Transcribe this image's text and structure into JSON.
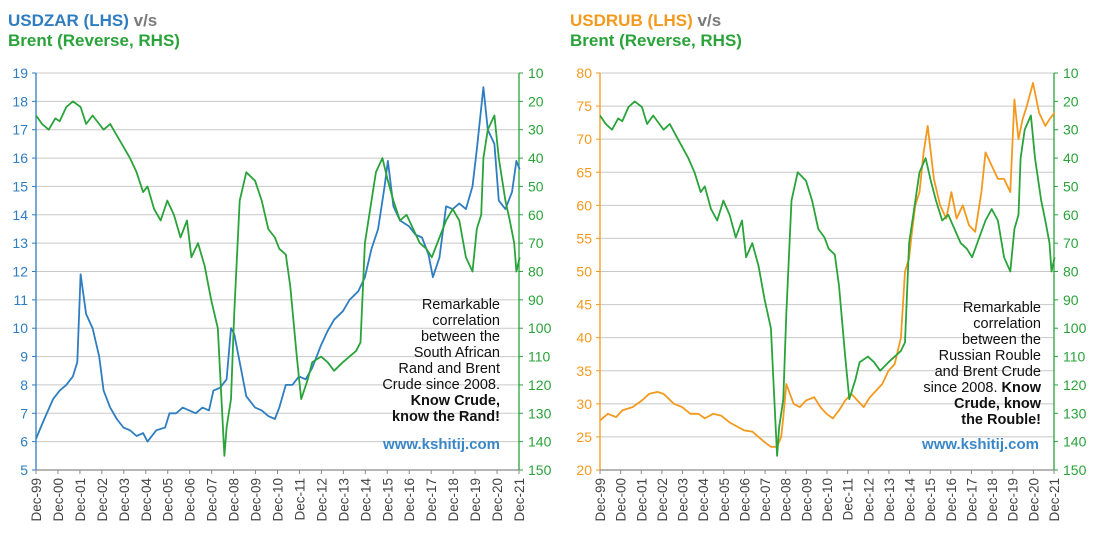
{
  "colors": {
    "zar": "#2f7dc1",
    "rub": "#f39a1e",
    "brent": "#2aa33a",
    "grid": "#c8c8c8",
    "site": "#3a87c7"
  },
  "charts": [
    {
      "id": "left",
      "title_main": "USDZAR (LHS)",
      "title_vs": "v/s",
      "subtitle": "Brent (Reverse, RHS)",
      "annotation_lines": [
        "Remarkable",
        "correlation",
        "between the",
        "South African",
        "Rand and Brent",
        "Crude since 2008."
      ],
      "annotation_bold_lines": [
        "Know Crude,",
        "know the Rand!"
      ],
      "website": "www.kshitij.com"
    },
    {
      "id": "right",
      "title_main": "USDRUB (LHS)",
      "title_vs": "v/s",
      "subtitle": "Brent (Reverse, RHS)",
      "annotation_lines": [
        "Remarkable",
        "correlation",
        "between the",
        "Russian Rouble",
        "and Brent Crude",
        "since 2008."
      ],
      "annotation_bold_lines": [
        "Know",
        "Crude, know",
        "the Rouble!"
      ],
      "website": "www.kshitij.com"
    }
  ],
  "chart_data": [
    {
      "type": "line",
      "x_ticks": [
        "Dec-99",
        "Dec-00",
        "Dec-01",
        "Dec-02",
        "Dec-03",
        "Dec-04",
        "Dec-05",
        "Dec-06",
        "Dec-07",
        "Dec-08",
        "Dec-09",
        "Dec-10",
        "Dec-11",
        "Dec-12",
        "Dec-13",
        "Dec-14",
        "Dec-15",
        "Dec-16",
        "Dec-17",
        "Dec-18",
        "Dec-19",
        "Dec-20",
        "Dec-21"
      ],
      "y_left_ticks": [
        "5",
        "6",
        "7",
        "8",
        "9",
        "10",
        "11",
        "12",
        "13",
        "14",
        "15",
        "16",
        "17",
        "18",
        "19"
      ],
      "y_right_ticks": [
        "10",
        "20",
        "30",
        "40",
        "50",
        "60",
        "70",
        "80",
        "90",
        "100",
        "110",
        "120",
        "130",
        "140",
        "150"
      ],
      "ylim_left": [
        5,
        19
      ],
      "ylim_right": [
        150,
        10
      ],
      "right_axis_reversed": true,
      "grid": true,
      "series": [
        {
          "name": "USDZAR",
          "axis": "left",
          "color": "#2f7dc1",
          "x": [
            1999.92,
            2000.3,
            2000.7,
            2001.0,
            2001.3,
            2001.6,
            2001.8,
            2001.95,
            2002.2,
            2002.5,
            2002.8,
            2003.0,
            2003.3,
            2003.6,
            2003.9,
            2004.2,
            2004.5,
            2004.8,
            2005.0,
            2005.4,
            2005.8,
            2006.0,
            2006.3,
            2006.6,
            2006.9,
            2007.2,
            2007.5,
            2007.8,
            2008.0,
            2008.3,
            2008.6,
            2008.8,
            2008.95,
            2009.2,
            2009.5,
            2009.9,
            2010.2,
            2010.5,
            2010.8,
            2011.0,
            2011.3,
            2011.6,
            2011.9,
            2012.2,
            2012.5,
            2012.9,
            2013.2,
            2013.5,
            2013.9,
            2014.2,
            2014.6,
            2014.9,
            2015.2,
            2015.5,
            2015.8,
            2015.95,
            2016.2,
            2016.5,
            2016.9,
            2017.2,
            2017.5,
            2017.8,
            2018.0,
            2018.3,
            2018.6,
            2018.9,
            2019.2,
            2019.5,
            2019.8,
            2020.0,
            2020.3,
            2020.5,
            2020.8,
            2021.0,
            2021.3,
            2021.6,
            2021.8,
            2021.95
          ],
          "y": [
            6.1,
            6.8,
            7.5,
            7.8,
            8.0,
            8.3,
            8.8,
            11.9,
            10.5,
            10.0,
            9.0,
            7.8,
            7.2,
            6.8,
            6.5,
            6.4,
            6.2,
            6.3,
            6.0,
            6.4,
            6.5,
            7.0,
            7.0,
            7.2,
            7.1,
            7.0,
            7.2,
            7.1,
            7.8,
            7.9,
            8.2,
            10.0,
            9.8,
            8.8,
            7.6,
            7.2,
            7.1,
            6.9,
            6.8,
            7.2,
            8.0,
            8.0,
            8.3,
            8.2,
            8.6,
            9.4,
            9.9,
            10.3,
            10.6,
            11.0,
            11.3,
            11.8,
            12.8,
            13.5,
            15.0,
            15.9,
            14.3,
            13.8,
            13.6,
            13.3,
            13.2,
            12.6,
            11.8,
            12.5,
            14.3,
            14.2,
            14.4,
            14.2,
            15.0,
            16.3,
            18.5,
            17.0,
            16.5,
            14.5,
            14.2,
            14.8,
            15.9,
            15.6
          ]
        },
        {
          "name": "Brent (Reverse)",
          "axis": "right",
          "color": "#2aa33a",
          "x": [
            1999.92,
            2000.2,
            2000.5,
            2000.8,
            2001.0,
            2001.3,
            2001.6,
            2001.95,
            2002.2,
            2002.5,
            2002.8,
            2003.0,
            2003.3,
            2003.6,
            2003.9,
            2004.2,
            2004.5,
            2004.8,
            2005.0,
            2005.3,
            2005.6,
            2005.9,
            2006.2,
            2006.5,
            2006.8,
            2007.0,
            2007.3,
            2007.6,
            2007.9,
            2008.2,
            2008.4,
            2008.5,
            2008.6,
            2008.8,
            2008.95,
            2009.2,
            2009.5,
            2009.9,
            2010.2,
            2010.5,
            2010.8,
            2011.0,
            2011.3,
            2011.5,
            2011.8,
            2012.0,
            2012.3,
            2012.5,
            2012.9,
            2013.2,
            2013.5,
            2013.9,
            2014.2,
            2014.5,
            2014.7,
            2014.9,
            2015.1,
            2015.4,
            2015.7,
            2015.95,
            2016.2,
            2016.5,
            2016.8,
            2017.1,
            2017.4,
            2017.7,
            2017.95,
            2018.3,
            2018.6,
            2018.9,
            2019.2,
            2019.5,
            2019.8,
            2020.0,
            2020.2,
            2020.3,
            2020.5,
            2020.8,
            2021.0,
            2021.3,
            2021.5,
            2021.7,
            2021.8,
            2021.95
          ],
          "y": [
            25,
            28,
            30,
            26,
            27,
            22,
            20,
            22,
            28,
            25,
            28,
            30,
            28,
            32,
            36,
            40,
            45,
            52,
            50,
            58,
            62,
            55,
            60,
            68,
            62,
            75,
            70,
            78,
            90,
            100,
            130,
            145,
            135,
            125,
            95,
            55,
            45,
            48,
            55,
            65,
            68,
            72,
            74,
            85,
            110,
            125,
            118,
            112,
            110,
            112,
            115,
            112,
            110,
            108,
            105,
            70,
            60,
            45,
            40,
            48,
            55,
            62,
            60,
            65,
            70,
            72,
            75,
            68,
            62,
            58,
            62,
            75,
            80,
            65,
            60,
            40,
            30,
            25,
            40,
            55,
            62,
            70,
            80,
            75
          ]
        }
      ]
    },
    {
      "type": "line",
      "x_ticks": [
        "Dec-99",
        "Dec-00",
        "Dec-01",
        "Dec-02",
        "Dec-03",
        "Dec-04",
        "Dec-05",
        "Dec-06",
        "Dec-07",
        "Dec-08",
        "Dec-09",
        "Dec-10",
        "Dec-11",
        "Dec-12",
        "Dec-13",
        "Dec-14",
        "Dec-15",
        "Dec-16",
        "Dec-17",
        "Dec-18",
        "Dec-19",
        "Dec-20",
        "Dec-21"
      ],
      "y_left_ticks": [
        "20",
        "25",
        "30",
        "35",
        "40",
        "45",
        "50",
        "55",
        "60",
        "65",
        "70",
        "75",
        "80"
      ],
      "y_right_ticks": [
        "10",
        "20",
        "30",
        "40",
        "50",
        "60",
        "70",
        "80",
        "90",
        "100",
        "110",
        "120",
        "130",
        "140",
        "150"
      ],
      "ylim_left": [
        20,
        80
      ],
      "ylim_right": [
        150,
        10
      ],
      "right_axis_reversed": true,
      "grid": true,
      "series": [
        {
          "name": "USDRUB",
          "axis": "left",
          "color": "#f39a1e",
          "x": [
            1999.92,
            2000.3,
            2000.7,
            2001.0,
            2001.5,
            2001.95,
            2002.3,
            2002.7,
            2003.0,
            2003.5,
            2003.9,
            2004.3,
            2004.7,
            2005.0,
            2005.4,
            2005.8,
            2006.2,
            2006.6,
            2006.9,
            2007.3,
            2007.6,
            2007.9,
            2008.2,
            2008.5,
            2008.7,
            2008.8,
            2008.95,
            2009.3,
            2009.6,
            2009.9,
            2010.3,
            2010.6,
            2010.9,
            2011.2,
            2011.5,
            2011.8,
            2012.1,
            2012.4,
            2012.7,
            2013.0,
            2013.3,
            2013.6,
            2013.9,
            2014.2,
            2014.5,
            2014.7,
            2014.9,
            2015.0,
            2015.2,
            2015.4,
            2015.6,
            2015.8,
            2015.95,
            2016.1,
            2016.4,
            2016.7,
            2016.95,
            2017.2,
            2017.5,
            2017.8,
            2018.1,
            2018.4,
            2018.6,
            2018.9,
            2019.2,
            2019.5,
            2019.8,
            2020.0,
            2020.2,
            2020.4,
            2020.6,
            2020.9,
            2021.2,
            2021.5,
            2021.7,
            2021.95
          ],
          "y": [
            27.5,
            28.5,
            28.0,
            29.0,
            29.5,
            30.5,
            31.5,
            31.8,
            31.5,
            30.0,
            29.5,
            28.5,
            28.5,
            27.8,
            28.5,
            28.2,
            27.2,
            26.5,
            26.0,
            25.8,
            25.0,
            24.2,
            23.5,
            23.5,
            25.0,
            28.0,
            33.0,
            30.0,
            29.5,
            30.5,
            31.0,
            29.5,
            28.5,
            27.8,
            29.0,
            30.5,
            31.5,
            30.5,
            29.5,
            31.0,
            32.0,
            33.0,
            35.0,
            36.0,
            40.0,
            50.0,
            52.0,
            55.0,
            60.0,
            62.0,
            68.0,
            72.0,
            68.0,
            64.0,
            60.0,
            58.0,
            62.0,
            58.0,
            60.0,
            57.0,
            56.0,
            62.0,
            68.0,
            66.0,
            64.0,
            64.0,
            62.0,
            76.0,
            70.0,
            73.0,
            75.0,
            78.5,
            74.0,
            72.0,
            73.0,
            74.0
          ]
        },
        {
          "name": "Brent (Reverse)",
          "axis": "right",
          "color": "#2aa33a",
          "x": [
            1999.92,
            2000.2,
            2000.5,
            2000.8,
            2001.0,
            2001.3,
            2001.6,
            2001.95,
            2002.2,
            2002.5,
            2002.8,
            2003.0,
            2003.3,
            2003.6,
            2003.9,
            2004.2,
            2004.5,
            2004.8,
            2005.0,
            2005.3,
            2005.6,
            2005.9,
            2006.2,
            2006.5,
            2006.8,
            2007.0,
            2007.3,
            2007.6,
            2007.9,
            2008.2,
            2008.4,
            2008.5,
            2008.6,
            2008.8,
            2008.95,
            2009.2,
            2009.5,
            2009.9,
            2010.2,
            2010.5,
            2010.8,
            2011.0,
            2011.3,
            2011.5,
            2011.8,
            2012.0,
            2012.3,
            2012.5,
            2012.9,
            2013.2,
            2013.5,
            2013.9,
            2014.2,
            2014.5,
            2014.7,
            2014.9,
            2015.1,
            2015.4,
            2015.7,
            2015.95,
            2016.2,
            2016.5,
            2016.8,
            2017.1,
            2017.4,
            2017.7,
            2017.95,
            2018.3,
            2018.6,
            2018.9,
            2019.2,
            2019.5,
            2019.8,
            2020.0,
            2020.2,
            2020.3,
            2020.5,
            2020.8,
            2021.0,
            2021.3,
            2021.5,
            2021.7,
            2021.8,
            2021.95
          ],
          "y": [
            25,
            28,
            30,
            26,
            27,
            22,
            20,
            22,
            28,
            25,
            28,
            30,
            28,
            32,
            36,
            40,
            45,
            52,
            50,
            58,
            62,
            55,
            60,
            68,
            62,
            75,
            70,
            78,
            90,
            100,
            130,
            145,
            135,
            125,
            95,
            55,
            45,
            48,
            55,
            65,
            68,
            72,
            74,
            85,
            110,
            125,
            118,
            112,
            110,
            112,
            115,
            112,
            110,
            108,
            105,
            70,
            60,
            45,
            40,
            48,
            55,
            62,
            60,
            65,
            70,
            72,
            75,
            68,
            62,
            58,
            62,
            75,
            80,
            65,
            60,
            40,
            30,
            25,
            40,
            55,
            62,
            70,
            80,
            75
          ]
        }
      ]
    }
  ]
}
